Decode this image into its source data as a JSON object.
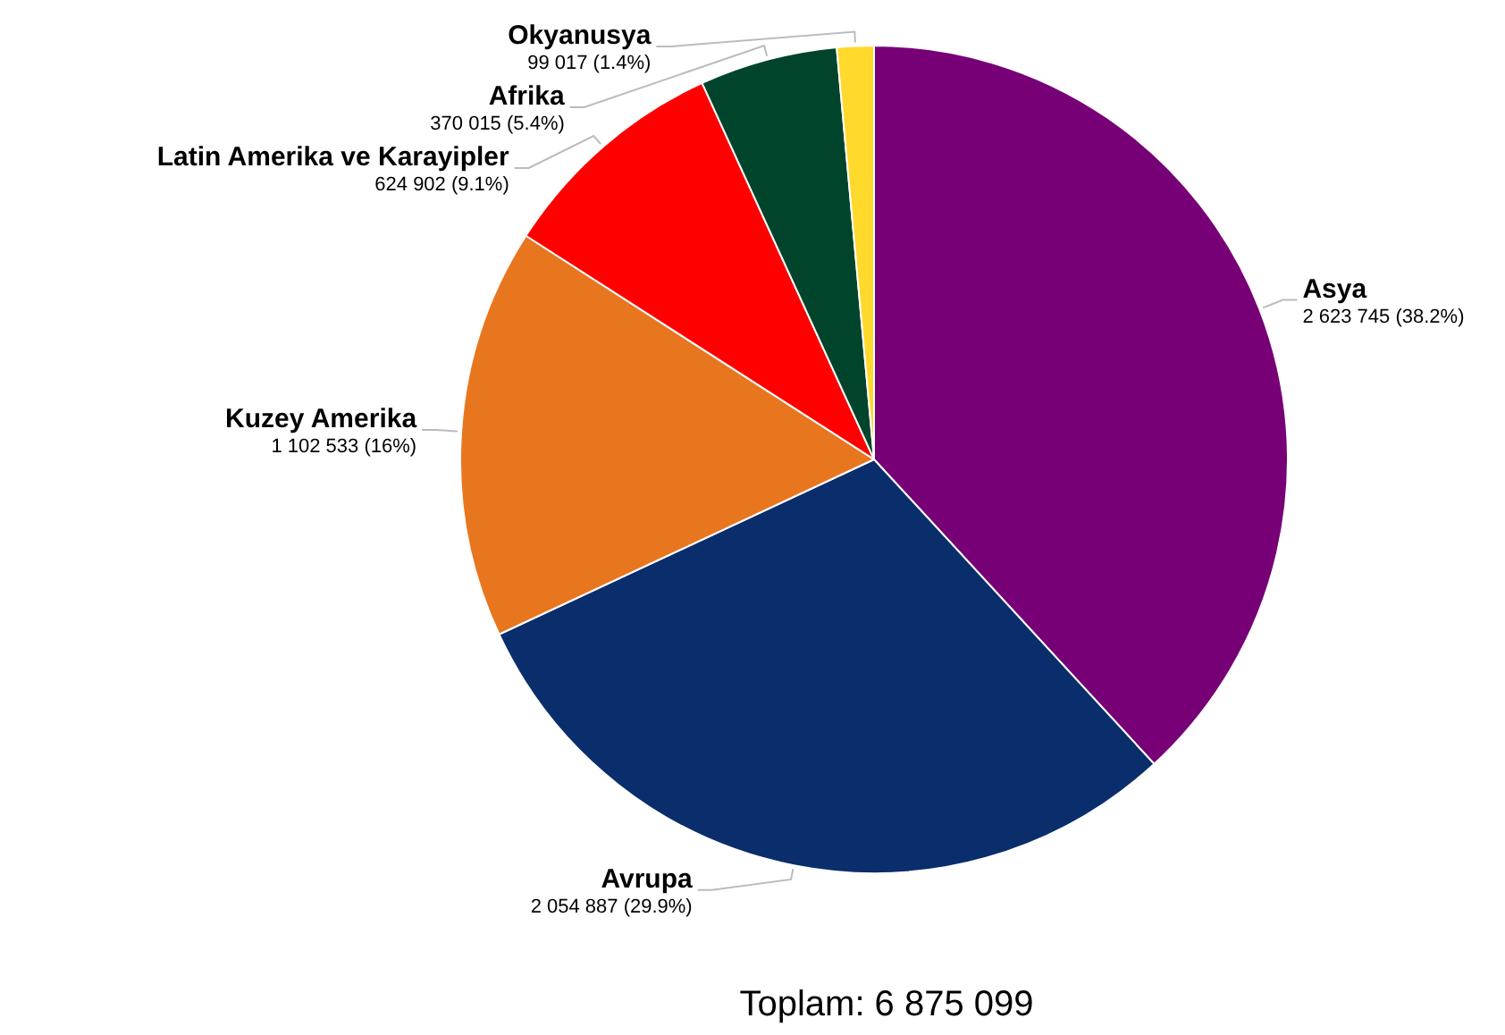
{
  "chart_data": {
    "type": "pie",
    "categories": [
      "Asya",
      "Avrupa",
      "Kuzey Amerika",
      "Latin Amerika ve Karayipler",
      "Afrika",
      "Okyanusya"
    ],
    "values": [
      2623745,
      2054887,
      1102533,
      624902,
      370015,
      99017
    ],
    "colors": [
      "#770077",
      "#092e6b",
      "#e8761f",
      "#ff0000",
      "#00452b",
      "#ffd92b"
    ],
    "value_labels": [
      "2 623 745 (38.2%)",
      "2 054 887 (29.9%)",
      "1 102 533 (16%)",
      "624 902 (9.1%)",
      "370 015 (5.4%)",
      "99 017 (1.4%)"
    ],
    "legend": false,
    "annotations": [
      "Toplam: 6 875 099"
    ]
  }
}
